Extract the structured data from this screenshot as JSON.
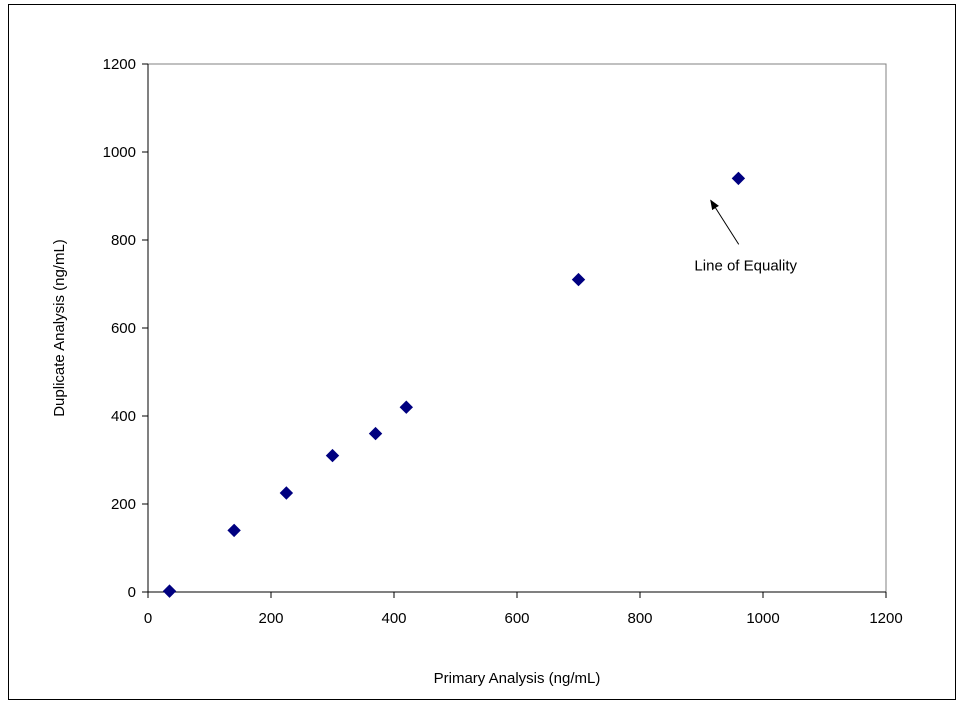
{
  "chart_data": {
    "type": "scatter",
    "title": "",
    "xlabel": "Primary Analysis (ng/mL)",
    "ylabel": "Duplicate Analysis (ng/mL)",
    "xlim": [
      0,
      1200
    ],
    "ylim": [
      0,
      1200
    ],
    "xticks": [
      "0",
      "200",
      "400",
      "600",
      "800",
      "1000",
      "1200"
    ],
    "yticks": [
      "0",
      "200",
      "400",
      "600",
      "800",
      "1000",
      "1200"
    ],
    "grid": false,
    "legend": "none",
    "marker": "diamond",
    "marker_color": "#000080",
    "points": [
      {
        "x": 35,
        "y": 2
      },
      {
        "x": 140,
        "y": 140
      },
      {
        "x": 225,
        "y": 225
      },
      {
        "x": 300,
        "y": 310
      },
      {
        "x": 370,
        "y": 360
      },
      {
        "x": 420,
        "y": 420
      },
      {
        "x": 700,
        "y": 710
      },
      {
        "x": 960,
        "y": 940
      }
    ],
    "annotations": [
      {
        "text": "Line of Equality",
        "arrow_target": {
          "x": 915,
          "y": 890
        }
      }
    ]
  }
}
